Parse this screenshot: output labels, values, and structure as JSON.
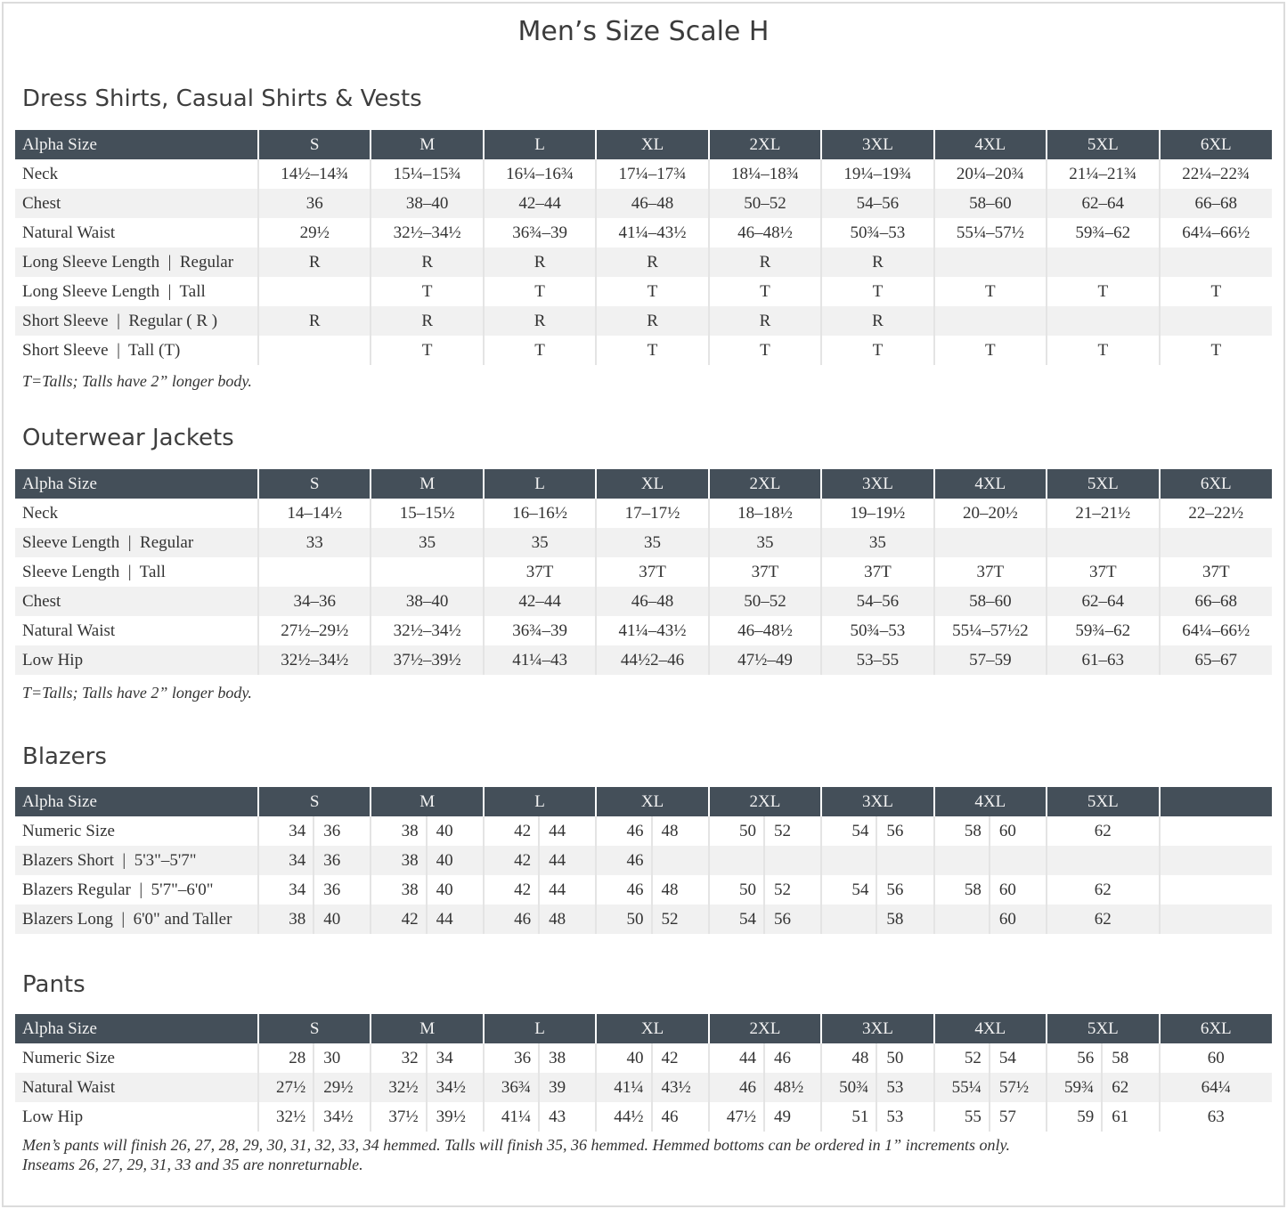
{
  "title": "Men’s Size Scale H",
  "sections": [
    {
      "heading": "Dress Shirts, Casual Shirts & Vests",
      "columns": [
        "Alpha Size",
        "S",
        "M",
        "L",
        "XL",
        "2XL",
        "3XL",
        "4XL",
        "5XL",
        "6XL"
      ],
      "rows": [
        {
          "label": "Neck",
          "cells": [
            "14½–14¾",
            "15¼–15¾",
            "16¼–16¾",
            "17¼–17¾",
            "18¼–18¾",
            "19¼–19¾",
            "20¼–20¾",
            "21¼–21¾",
            "22¼–22¾"
          ]
        },
        {
          "label": "Chest",
          "cells": [
            "36",
            "38–40",
            "42–44",
            "46–48",
            "50–52",
            "54–56",
            "58–60",
            "62–64",
            "66–68"
          ]
        },
        {
          "label": "Natural Waist",
          "cells": [
            "29½",
            "32½–34½",
            "36¾–39",
            "41¼–43½",
            "46–48½",
            "50¾–53",
            "55¼–57½",
            "59¾–62",
            "64¼–66½"
          ]
        },
        {
          "label": "Long Sleeve Length  |  Regular",
          "cells": [
            "R",
            "R",
            "R",
            "R",
            "R",
            "R",
            "",
            "",
            ""
          ]
        },
        {
          "label": "Long Sleeve Length  |  Tall",
          "cells": [
            "",
            "T",
            "T",
            "T",
            "T",
            "T",
            "T",
            "T",
            "T"
          ]
        },
        {
          "label": "Short Sleeve  |  Regular ( R )",
          "cells": [
            "R",
            "R",
            "R",
            "R",
            "R",
            "R",
            "",
            "",
            ""
          ]
        },
        {
          "label": "Short Sleeve  |  Tall (T)",
          "cells": [
            "",
            "T",
            "T",
            "T",
            "T",
            "T",
            "T",
            "T",
            "T"
          ]
        }
      ],
      "note": "T=Talls; Talls have 2” longer body."
    },
    {
      "heading": "Outerwear Jackets",
      "columns": [
        "Alpha Size",
        "S",
        "M",
        "L",
        "XL",
        "2XL",
        "3XL",
        "4XL",
        "5XL",
        "6XL"
      ],
      "rows": [
        {
          "label": "Neck",
          "cells": [
            "14–14½",
            "15–15½",
            "16–16½",
            "17–17½",
            "18–18½",
            "19–19½",
            "20–20½",
            "21–21½",
            "22–22½"
          ]
        },
        {
          "label": "Sleeve Length  |  Regular",
          "cells": [
            "33",
            "35",
            "35",
            "35",
            "35",
            "35",
            "",
            "",
            ""
          ]
        },
        {
          "label": "Sleeve Length  |  Tall",
          "cells": [
            "",
            "",
            "37T",
            "37T",
            "37T",
            "37T",
            "37T",
            "37T",
            "37T"
          ]
        },
        {
          "label": "Chest",
          "cells": [
            "34–36",
            "38–40",
            "42–44",
            "46–48",
            "50–52",
            "54–56",
            "58–60",
            "62–64",
            "66–68"
          ]
        },
        {
          "label": "Natural Waist",
          "cells": [
            "27½–29½",
            "32½–34½",
            "36¾–39",
            "41¼–43½",
            "46–48½",
            "50¾–53",
            "55¼–57½2",
            "59¾–62",
            "64¼–66½"
          ]
        },
        {
          "label": "Low Hip",
          "cells": [
            "32½–34½",
            "37½–39½",
            "41¼–43",
            "44½2–46",
            "47½–49",
            "53–55",
            "57–59",
            "61–63",
            "65–67"
          ]
        }
      ],
      "note": "T=Talls; Talls have 2” longer body."
    },
    {
      "heading": "Blazers",
      "columns": [
        "Alpha Size",
        "S",
        "M",
        "L",
        "XL",
        "2XL",
        "3XL",
        "4XL",
        "5XL",
        ""
      ],
      "rows": [
        {
          "label": "Numeric Size",
          "cells": [
            [
              "34",
              "36"
            ],
            [
              "38",
              "40"
            ],
            [
              "42",
              "44"
            ],
            [
              "46",
              "48"
            ],
            [
              "50",
              "52"
            ],
            [
              "54",
              "56"
            ],
            [
              "58",
              "60"
            ],
            "62",
            ""
          ]
        },
        {
          "label": "Blazers Short  |  5'3\"–5'7\"",
          "cells": [
            [
              "34",
              "36"
            ],
            [
              "38",
              "40"
            ],
            [
              "42",
              "44"
            ],
            [
              "46",
              ""
            ],
            [
              "",
              ""
            ],
            [
              "",
              ""
            ],
            [
              "",
              ""
            ],
            "",
            ""
          ]
        },
        {
          "label": "Blazers Regular  |  5'7\"–6'0\"",
          "cells": [
            [
              "34",
              "36"
            ],
            [
              "38",
              "40"
            ],
            [
              "42",
              "44"
            ],
            [
              "46",
              "48"
            ],
            [
              "50",
              "52"
            ],
            [
              "54",
              "56"
            ],
            [
              "58",
              "60"
            ],
            "62",
            ""
          ]
        },
        {
          "label": "Blazers Long  |  6'0\" and Taller",
          "cells": [
            [
              "38",
              "40"
            ],
            [
              "42",
              "44"
            ],
            [
              "46",
              "48"
            ],
            [
              "50",
              "52"
            ],
            [
              "54",
              "56"
            ],
            [
              "",
              "58"
            ],
            [
              "",
              "60"
            ],
            "62",
            ""
          ]
        }
      ]
    },
    {
      "heading": "Pants",
      "columns": [
        "Alpha Size",
        "S",
        "M",
        "L",
        "XL",
        "2XL",
        "3XL",
        "4XL",
        "5XL",
        "6XL"
      ],
      "rows": [
        {
          "label": "Numeric Size",
          "cells": [
            [
              "28",
              "30"
            ],
            [
              "32",
              "34"
            ],
            [
              "36",
              "38"
            ],
            [
              "40",
              "42"
            ],
            [
              "44",
              "46"
            ],
            [
              "48",
              "50"
            ],
            [
              "52",
              "54"
            ],
            [
              "56",
              "58"
            ],
            "60"
          ]
        },
        {
          "label": "Natural Waist",
          "cells": [
            [
              "27½",
              "29½"
            ],
            [
              "32½",
              "34½"
            ],
            [
              "36¾",
              "39"
            ],
            [
              "41¼",
              "43½"
            ],
            [
              "46",
              "48½"
            ],
            [
              "50¾",
              "53"
            ],
            [
              "55¼",
              "57½"
            ],
            [
              "59¾",
              "62"
            ],
            "64¼"
          ]
        },
        {
          "label": "Low Hip",
          "cells": [
            [
              "32½",
              "34½"
            ],
            [
              "37½",
              "39½"
            ],
            [
              "41¼",
              "43"
            ],
            [
              "44½",
              "46"
            ],
            [
              "47½",
              "49"
            ],
            [
              "51",
              "53"
            ],
            [
              "55",
              "57"
            ],
            [
              "59",
              "61"
            ],
            "63"
          ]
        }
      ],
      "note_lines": [
        "Men’s pants will finish 26, 27, 28, 29, 30, 31, 32, 33, 34 hemmed. Talls will finish 35, 36 hemmed. Hemmed bottoms can be ordered in 1” increments only.",
        "Inseams 26, 27, 29, 31, 33 and 35 are nonreturnable."
      ]
    }
  ]
}
